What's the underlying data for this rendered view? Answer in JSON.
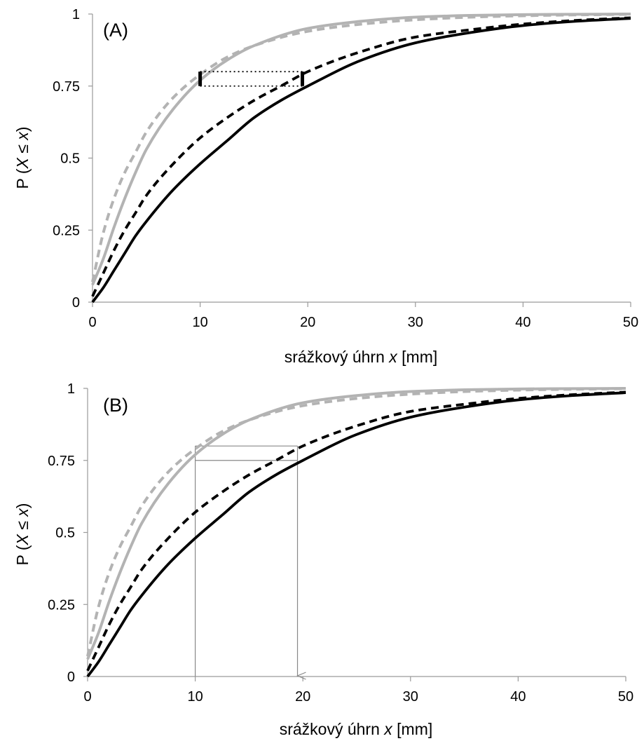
{
  "figure": {
    "panels": [
      {
        "id": "A",
        "panel_label": "(A)",
        "xlabel_prefix": "srážkový úhrn ",
        "xlabel_var": "x",
        "xlabel_suffix": " [mm]",
        "ylabel_prefix": "P (",
        "ylabel_var": "X",
        "ylabel_mid": " ≤ ",
        "ylabel_var2": "x",
        "ylabel_suffix": ")",
        "annotation_style": "dotted"
      },
      {
        "id": "B",
        "panel_label": "(B)",
        "xlabel_prefix": "srážkový úhrn ",
        "xlabel_var": "x",
        "xlabel_suffix": " [mm]",
        "ylabel_prefix": "P (",
        "ylabel_var": "X",
        "ylabel_mid": " ≤ ",
        "ylabel_var2": "x",
        "ylabel_suffix": ")",
        "annotation_style": "arrow"
      }
    ],
    "colors": {
      "gray_series": "#b3b3b3",
      "black_series": "#000000",
      "axis": "#9a9a9a",
      "annotation": "#000000",
      "annotation_thin": "#888888"
    }
  },
  "chart_data": [
    {
      "type": "line",
      "panel": "A",
      "xlim": [
        0,
        50
      ],
      "ylim": [
        0,
        1
      ],
      "x_ticks": [
        "0",
        "10",
        "20",
        "30",
        "40",
        "50"
      ],
      "y_ticks": [
        "0",
        "0.25",
        "0.5",
        "0.75",
        "1"
      ],
      "grid": false,
      "series": [
        {
          "style": "gray-solid",
          "x": [
            0,
            1,
            2,
            3,
            4,
            5,
            7.5,
            10,
            12.5,
            15,
            20,
            25,
            30,
            35,
            40,
            45,
            50
          ],
          "y": [
            0.06,
            0.15,
            0.26,
            0.36,
            0.45,
            0.53,
            0.67,
            0.77,
            0.84,
            0.89,
            0.95,
            0.975,
            0.989,
            0.995,
            0.998,
            0.999,
            1.0
          ]
        },
        {
          "style": "gray-dashed",
          "x": [
            0,
            1,
            2,
            3,
            4,
            5,
            7.5,
            10,
            12.5,
            15,
            20,
            25,
            30,
            35,
            40,
            45,
            50
          ],
          "y": [
            0.07,
            0.24,
            0.36,
            0.45,
            0.52,
            0.59,
            0.71,
            0.79,
            0.85,
            0.89,
            0.94,
            0.965,
            0.98,
            0.989,
            0.994,
            0.997,
            0.999
          ]
        },
        {
          "style": "black-solid",
          "x": [
            0,
            1,
            2,
            3,
            4,
            5,
            7.5,
            10,
            12.5,
            15,
            17.5,
            20,
            25,
            30,
            35,
            40,
            45,
            50
          ],
          "y": [
            0.0,
            0.05,
            0.11,
            0.17,
            0.23,
            0.28,
            0.39,
            0.48,
            0.56,
            0.64,
            0.7,
            0.75,
            0.84,
            0.9,
            0.935,
            0.96,
            0.975,
            0.985
          ]
        },
        {
          "style": "black-dashed",
          "x": [
            0,
            1,
            2,
            3,
            4,
            5,
            7.5,
            10,
            12.5,
            15,
            17.5,
            20,
            25,
            30,
            35,
            40,
            45,
            50
          ],
          "y": [
            0.02,
            0.1,
            0.18,
            0.25,
            0.31,
            0.37,
            0.48,
            0.57,
            0.64,
            0.7,
            0.75,
            0.8,
            0.87,
            0.92,
            0.945,
            0.965,
            0.978,
            0.987
          ]
        }
      ],
      "annotations": {
        "bar_low": {
          "x": 10,
          "y": [
            0.75,
            0.8
          ]
        },
        "bar_high": {
          "x": 19.5,
          "y": [
            0.75,
            0.8
          ]
        },
        "dotted_levels": [
          0.75,
          0.8
        ]
      }
    },
    {
      "type": "line",
      "panel": "B",
      "xlim": [
        0,
        50
      ],
      "ylim": [
        0,
        1
      ],
      "x_ticks": [
        "0",
        "10",
        "20",
        "30",
        "40",
        "50"
      ],
      "y_ticks": [
        "0",
        "0.25",
        "0.5",
        "0.75",
        "1"
      ],
      "grid": false,
      "series": [
        {
          "style": "gray-solid",
          "x": [
            0,
            1,
            2,
            3,
            4,
            5,
            7.5,
            10,
            12.5,
            15,
            20,
            25,
            30,
            35,
            40,
            45,
            50
          ],
          "y": [
            0.06,
            0.15,
            0.26,
            0.36,
            0.45,
            0.53,
            0.67,
            0.77,
            0.84,
            0.89,
            0.95,
            0.975,
            0.989,
            0.995,
            0.998,
            0.999,
            1.0
          ]
        },
        {
          "style": "gray-dashed",
          "x": [
            0,
            1,
            2,
            3,
            4,
            5,
            7.5,
            10,
            12.5,
            15,
            20,
            25,
            30,
            35,
            40,
            45,
            50
          ],
          "y": [
            0.07,
            0.24,
            0.36,
            0.45,
            0.52,
            0.59,
            0.71,
            0.79,
            0.85,
            0.89,
            0.94,
            0.965,
            0.98,
            0.989,
            0.994,
            0.997,
            0.999
          ]
        },
        {
          "style": "black-solid",
          "x": [
            0,
            1,
            2,
            3,
            4,
            5,
            7.5,
            10,
            12.5,
            15,
            17.5,
            20,
            25,
            30,
            35,
            40,
            45,
            50
          ],
          "y": [
            0.0,
            0.05,
            0.11,
            0.17,
            0.23,
            0.28,
            0.39,
            0.48,
            0.56,
            0.64,
            0.7,
            0.75,
            0.84,
            0.9,
            0.935,
            0.96,
            0.975,
            0.985
          ]
        },
        {
          "style": "black-dashed",
          "x": [
            0,
            1,
            2,
            3,
            4,
            5,
            7.5,
            10,
            12.5,
            15,
            17.5,
            20,
            25,
            30,
            35,
            40,
            45,
            50
          ],
          "y": [
            0.02,
            0.1,
            0.18,
            0.25,
            0.31,
            0.37,
            0.48,
            0.57,
            0.64,
            0.7,
            0.75,
            0.8,
            0.87,
            0.92,
            0.945,
            0.965,
            0.978,
            0.987
          ]
        }
      ],
      "annotations": {
        "vline_from": {
          "x": 10,
          "y": [
            0,
            0.8
          ]
        },
        "hlines": [
          0.8,
          0.75
        ],
        "arrow_down": {
          "x": 19.5,
          "y": [
            0.8,
            0
          ]
        }
      }
    }
  ]
}
